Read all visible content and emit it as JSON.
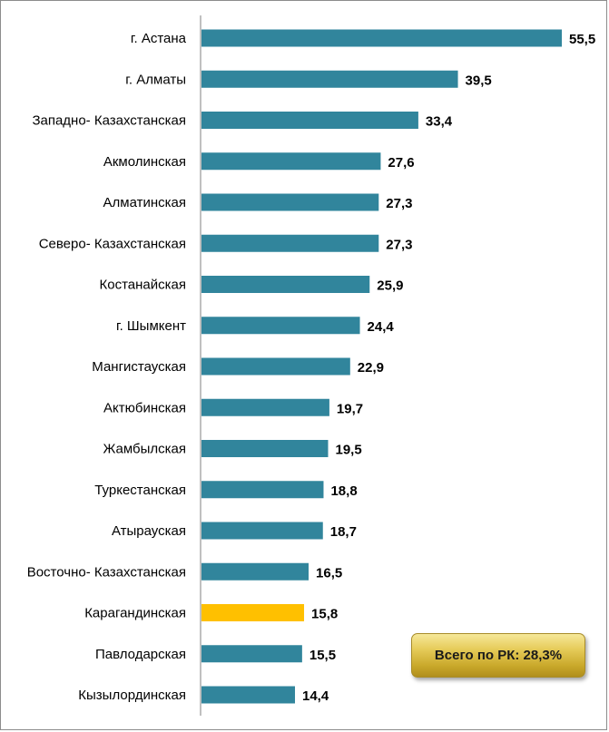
{
  "chart_data": {
    "type": "bar",
    "orientation": "horizontal",
    "categories": [
      "г. Астана",
      "г. Алматы",
      "Западно- Казахстанская",
      "Акмолинская",
      "Алматинская",
      "Северо- Казахстанская",
      "Костанайская",
      "г. Шымкент",
      "Мангистауская",
      "Актюбинская",
      "Жамбылская",
      "Туркестанская",
      "Атырауская",
      "Восточно- Казахстанская",
      "Карагандинская",
      "Павлодарская",
      "Кызылординская"
    ],
    "values": [
      55.5,
      39.5,
      33.4,
      27.6,
      27.3,
      27.3,
      25.9,
      24.4,
      22.9,
      19.7,
      19.5,
      18.8,
      18.7,
      16.5,
      15.8,
      15.5,
      14.4
    ],
    "value_labels": [
      "55,5",
      "39,5",
      "33,4",
      "27,6",
      "27,3",
      "27,3",
      "25,9",
      "24,4",
      "22,9",
      "19,7",
      "19,5",
      "18,8",
      "18,7",
      "16,5",
      "15,8",
      "15,5",
      "14,4"
    ],
    "highlighted_category": "Карагандинская",
    "bar_color": "#31859c",
    "highlight_color": "#ffc000",
    "xlim": [
      0,
      56
    ],
    "grid": false,
    "title": "",
    "xlabel": "",
    "ylabel": ""
  },
  "total_box": {
    "text": "Всего по РК: 28,3%"
  }
}
